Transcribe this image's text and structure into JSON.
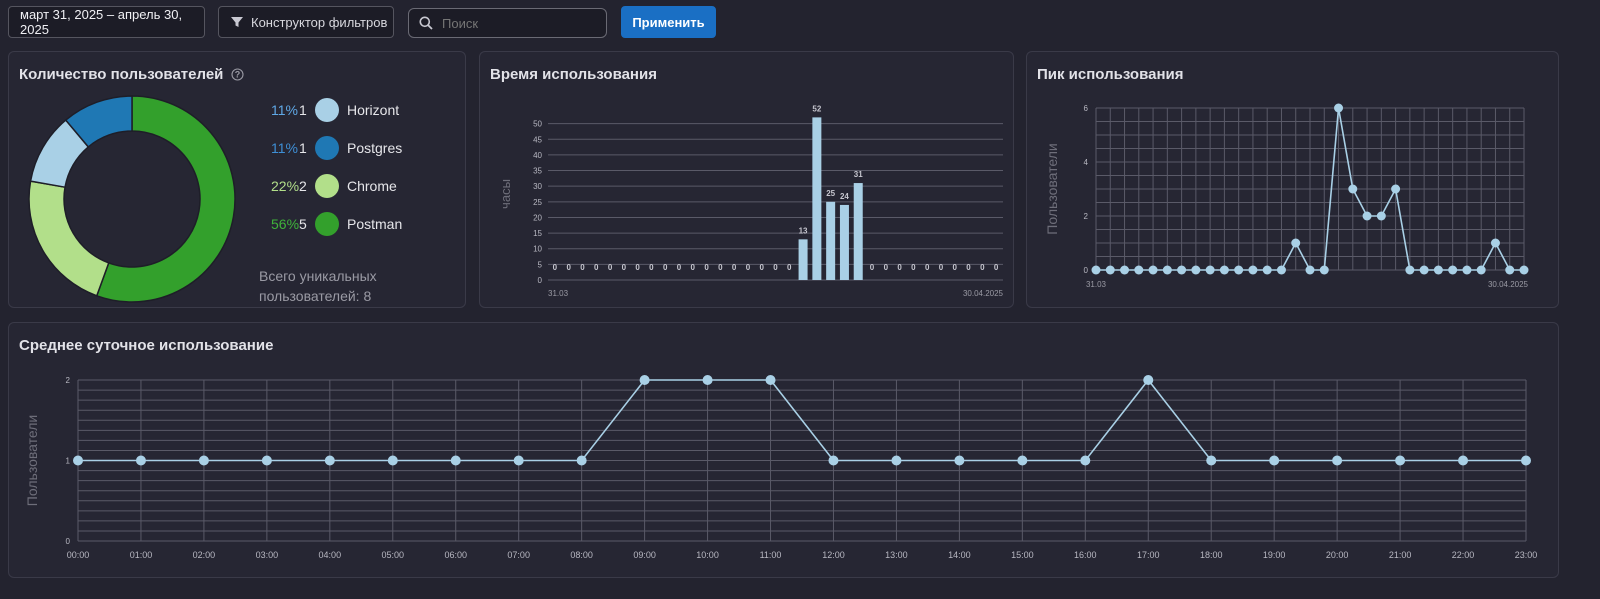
{
  "toolbar": {
    "date_range": "март 31, 2025 – апрель 30, 2025",
    "filter_label": "Конструктор фильтров",
    "search_placeholder": "Поиск",
    "apply_label": "Применить"
  },
  "users_panel": {
    "title": "Количество пользователей",
    "total_text": "Всего уникальных пользователей: 8",
    "chart_data": {
      "type": "pie",
      "donut": true,
      "categories": [
        "Horizont",
        "Postgres",
        "Chrome",
        "Postman"
      ],
      "values": [
        1,
        1,
        2,
        5
      ],
      "percents": [
        "11%",
        "11%",
        "22%",
        "56%"
      ],
      "colors": [
        "#a9d0e6",
        "#1f78b4",
        "#b2df8a",
        "#33a02c"
      ],
      "legend": "right"
    }
  },
  "usage_time_panel": {
    "title": "Время использования",
    "chart_data": {
      "type": "bar",
      "ylabel": "часы",
      "ylim": [
        0,
        55
      ],
      "yticks": [
        0,
        5,
        10,
        15,
        20,
        25,
        30,
        35,
        40,
        45,
        50
      ],
      "values": [
        0,
        0,
        0,
        0,
        0,
        0,
        0,
        0,
        0,
        0,
        0,
        0,
        0,
        0,
        0,
        0,
        0,
        0,
        13,
        52,
        25,
        24,
        31,
        0,
        0,
        0,
        0,
        0,
        0,
        0,
        0,
        0,
        0
      ],
      "first_tick": "31.03",
      "last_tick": "30.04.2025",
      "color": "#a9d0e6",
      "grid": true
    }
  },
  "peak_panel": {
    "title": "Пик использования",
    "chart_data": {
      "type": "line",
      "ylabel": "Пользователи",
      "ylim": [
        0,
        6
      ],
      "yticks": [
        0,
        2,
        4,
        6
      ],
      "values": [
        0,
        0,
        0,
        0,
        0,
        0,
        0,
        0,
        0,
        0,
        0,
        0,
        0,
        0,
        1,
        0,
        0,
        6,
        3,
        2,
        2,
        3,
        0,
        0,
        0,
        0,
        0,
        0,
        1,
        0,
        0
      ],
      "first_tick": "31.03",
      "last_tick": "30.04.2025",
      "color": "#a9d0e6",
      "grid": true
    }
  },
  "daily_panel": {
    "title": "Среднее суточное использование",
    "chart_data": {
      "type": "line",
      "ylabel": "Пользователи",
      "ylim": [
        0,
        2
      ],
      "yticks": [
        0,
        1,
        2
      ],
      "categories": [
        "00:00",
        "01:00",
        "02:00",
        "03:00",
        "04:00",
        "05:00",
        "06:00",
        "07:00",
        "08:00",
        "09:00",
        "10:00",
        "11:00",
        "12:00",
        "13:00",
        "14:00",
        "15:00",
        "16:00",
        "17:00",
        "18:00",
        "19:00",
        "20:00",
        "21:00",
        "22:00",
        "23:00"
      ],
      "values": [
        1,
        1,
        1,
        1,
        1,
        1,
        1,
        1,
        1,
        2,
        2,
        2,
        1,
        1,
        1,
        1,
        1,
        2,
        1,
        1,
        1,
        1,
        1,
        1
      ],
      "color": "#a9d0e6",
      "grid": true
    }
  }
}
